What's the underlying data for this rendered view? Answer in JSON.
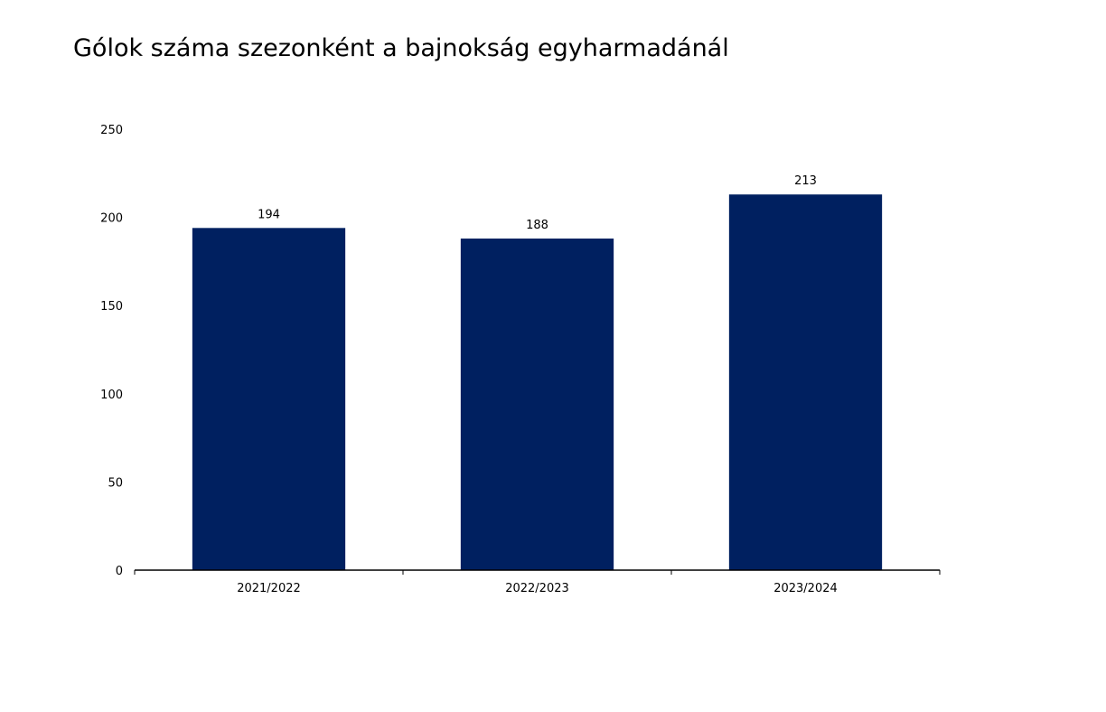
{
  "chart_data": {
    "type": "bar",
    "title": "Gólok száma szezonként a bajnokság egyharmadánál",
    "xlabel": "",
    "ylabel": "",
    "categories": [
      "2021/2022",
      "2022/2023",
      "2023/2024"
    ],
    "values": [
      194,
      188,
      213
    ],
    "data_labels": [
      "194",
      "188",
      "213"
    ],
    "ylim": [
      0,
      250
    ],
    "yticks": [
      0,
      50,
      100,
      150,
      200,
      250
    ],
    "ytick_labels": [
      "0",
      "50",
      "100",
      "150",
      "200",
      "250"
    ],
    "grid": false,
    "legend": "none",
    "bar_color": "#002060"
  }
}
